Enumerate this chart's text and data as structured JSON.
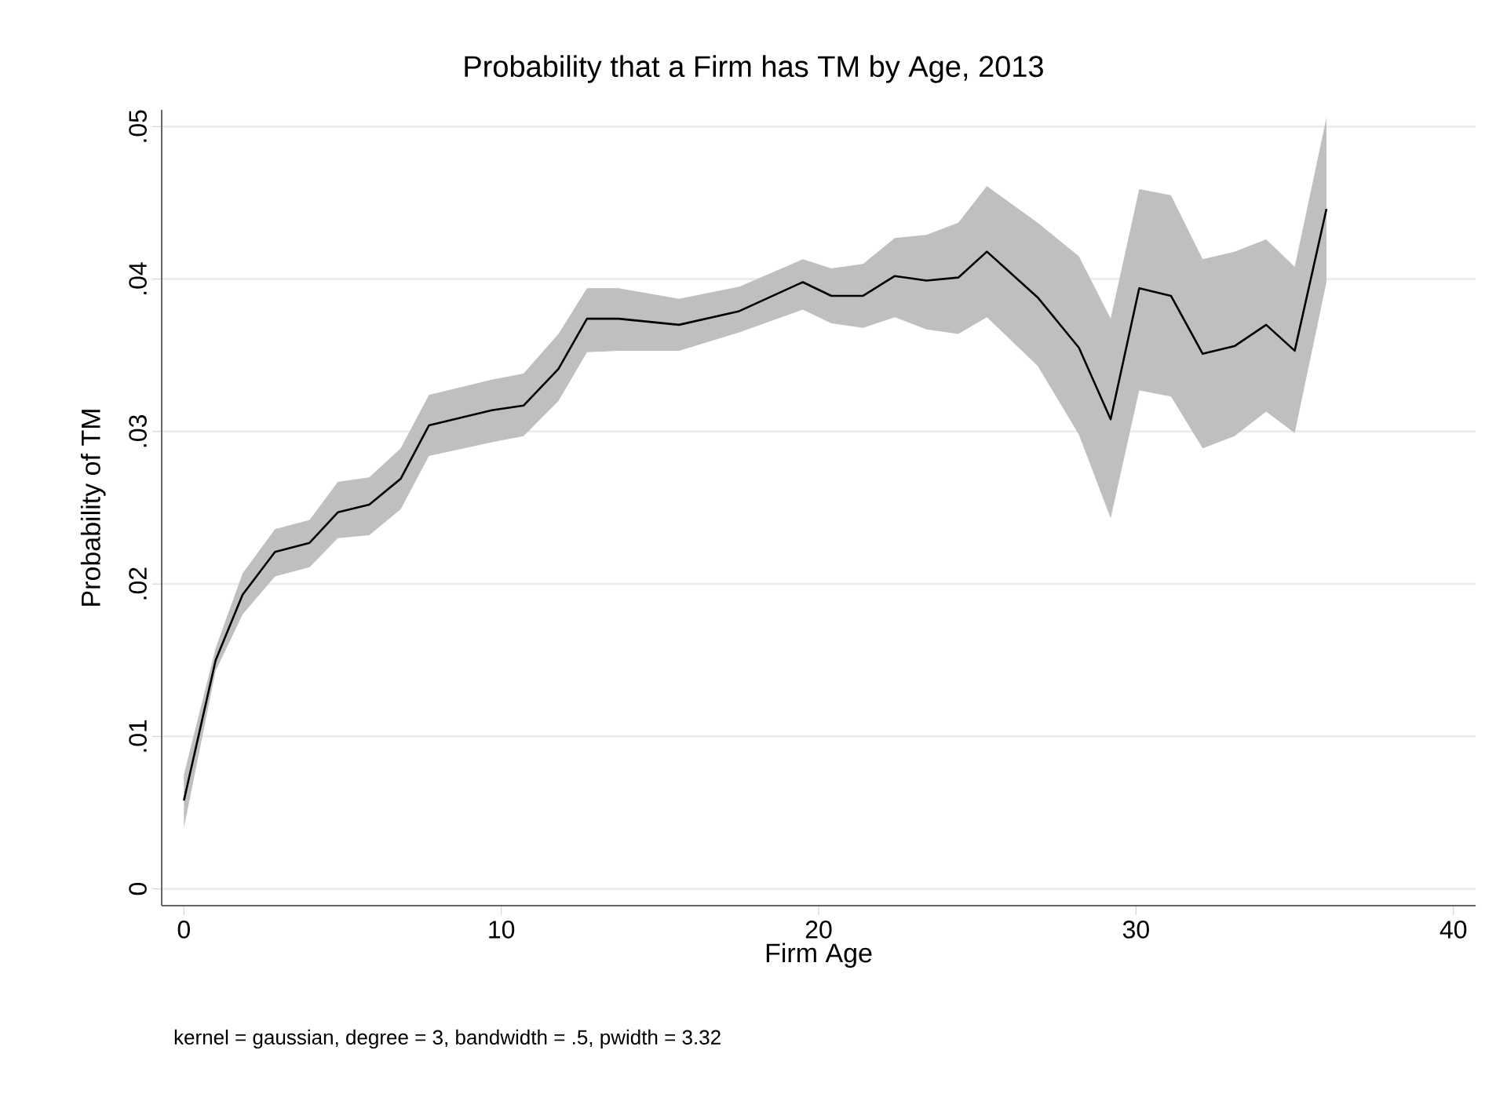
{
  "chart_data": {
    "type": "line",
    "title": "Probability that a Firm has TM by Age, 2013",
    "xlabel": "Firm Age",
    "ylabel": "Probability of TM",
    "annotations": [
      "kernel = gaussian, degree = 3, bandwidth = .5, pwidth = 3.32"
    ],
    "series": [
      {
        "color": "#000000",
        "x": [
          0,
          1.0,
          1.85,
          2.87,
          3.96,
          4.85,
          5.84,
          6.83,
          7.72,
          9.7,
          10.7,
          11.8,
          12.7,
          13.7,
          15.6,
          17.5,
          19.5,
          20.4,
          21.4,
          22.4,
          23.4,
          24.4,
          25.3,
          26.9,
          28.2,
          29.2,
          30.1,
          31.1,
          32.1,
          33.1,
          34.1,
          35.0,
          36.0
        ],
        "values": [
          0.0058,
          0.015,
          0.0193,
          0.0221,
          0.0227,
          0.0247,
          0.0252,
          0.0269,
          0.0304,
          0.0314,
          0.0317,
          0.0341,
          0.0374,
          0.0374,
          0.037,
          0.0379,
          0.0398,
          0.0389,
          0.0389,
          0.0402,
          0.0399,
          0.0401,
          0.0418,
          0.0388,
          0.0355,
          0.0308,
          0.0394,
          0.0389,
          0.0351,
          0.0356,
          0.037,
          0.0353,
          0.0446
        ],
        "lower": [
          0.004,
          0.0143,
          0.018,
          0.0205,
          0.0211,
          0.023,
          0.0232,
          0.0249,
          0.0284,
          0.0293,
          0.0297,
          0.032,
          0.0352,
          0.0353,
          0.0353,
          0.0365,
          0.038,
          0.0371,
          0.0368,
          0.0375,
          0.0367,
          0.0364,
          0.0375,
          0.0343,
          0.0298,
          0.0243,
          0.0327,
          0.0323,
          0.0289,
          0.0297,
          0.0313,
          0.0299,
          0.0398
        ],
        "upper": [
          0.0075,
          0.0158,
          0.0207,
          0.0236,
          0.0242,
          0.0267,
          0.027,
          0.0289,
          0.0324,
          0.0334,
          0.0338,
          0.0364,
          0.0394,
          0.0394,
          0.0387,
          0.0395,
          0.0413,
          0.0407,
          0.041,
          0.0427,
          0.0429,
          0.0437,
          0.0461,
          0.0437,
          0.0415,
          0.0374,
          0.0459,
          0.0455,
          0.0413,
          0.0418,
          0.0426,
          0.0408,
          0.0506
        ]
      }
    ],
    "xlim": [
      -0.7,
      40.7
    ],
    "ylim": [
      -0.0011,
      0.0511
    ],
    "xticks": [
      0,
      10,
      20,
      30,
      40
    ],
    "yticks": [
      0,
      {
        "value": 0.01,
        "label": ".01"
      },
      {
        "value": 0.02,
        "label": ".02"
      },
      {
        "value": 0.03,
        "label": ".03"
      },
      {
        "value": 0.04,
        "label": ".04"
      },
      {
        "value": 0.05,
        "label": ".05"
      }
    ],
    "grid": "y",
    "marker": "none",
    "line_style": "solid"
  }
}
